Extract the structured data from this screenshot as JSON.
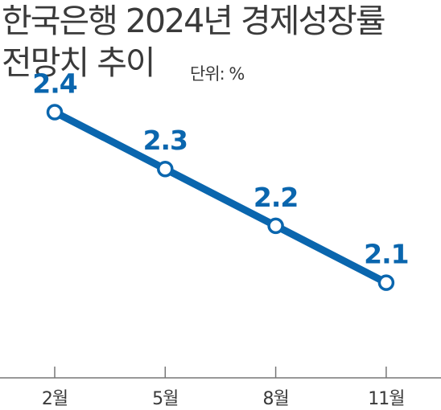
{
  "header": {
    "title_line1": "한국은행 2024년 경제성장률",
    "title_line2": "전망치 추이",
    "unit_label": "단위: %"
  },
  "colors": {
    "series": "#0a66ae",
    "text": "#3a3a3a",
    "axis": "#777777",
    "marker_fill": "#ffffff"
  },
  "chart_data": {
    "type": "line",
    "title": "한국은행 2024년 경제성장률 전망치 추이",
    "unit": "%",
    "categories": [
      "2월",
      "5월",
      "8월",
      "11월"
    ],
    "series": [
      {
        "values": [
          2.4,
          2.3,
          2.2,
          2.1
        ]
      }
    ],
    "data_labels": [
      "2.4",
      "2.3",
      "2.2",
      "2.1"
    ],
    "ylim": [
      1.9,
      2.47
    ],
    "grid": false,
    "legend": "none"
  }
}
